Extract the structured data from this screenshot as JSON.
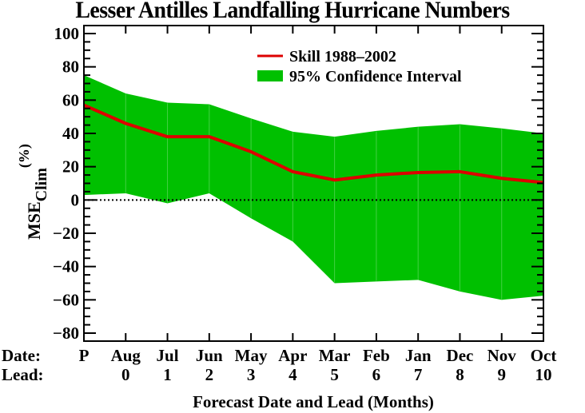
{
  "chart_data": {
    "type": "line",
    "title": "Lesser Antilles Landfalling Hurricane Numbers",
    "xlabel": "Forecast Date and Lead (Months)",
    "ylabel": "MSE",
    "ylabel_subscript": "Clim",
    "ylabel_superscript": "(%)",
    "row_labels": {
      "date": "Date:",
      "lead": "Lead:"
    },
    "categories": [
      "P",
      "Aug",
      "Jul",
      "Jun",
      "May",
      "Apr",
      "Mar",
      "Feb",
      "Jan",
      "Dec",
      "Nov",
      "Oct"
    ],
    "leads": [
      "",
      "0",
      "1",
      "2",
      "3",
      "4",
      "5",
      "6",
      "7",
      "8",
      "9",
      "10"
    ],
    "ylim": [
      -85,
      105
    ],
    "yticks": [
      100,
      80,
      60,
      40,
      20,
      0,
      -20,
      -40,
      -60,
      -80
    ],
    "ytick_labels": [
      "100",
      "80",
      "60",
      "40",
      "20",
      "0",
      "−20",
      "−40",
      "−60",
      "−80"
    ],
    "reference_line": {
      "y": 0,
      "style": "dotted"
    },
    "grid": false,
    "legend_position": "top-center",
    "series": [
      {
        "name": "Skill 1988–2002",
        "type": "line",
        "color": "#dd0000",
        "values": [
          57,
          46,
          38,
          38,
          29,
          17,
          12,
          15,
          16.5,
          17,
          13,
          10.5
        ]
      },
      {
        "name": "95% Confidence Interval",
        "type": "band",
        "color": "#00c000",
        "upper": [
          75,
          64,
          58.5,
          57.5,
          49,
          41,
          38,
          41.5,
          44,
          45.5,
          43,
          40
        ],
        "lower": [
          3,
          4,
          -2,
          4,
          -11,
          -25,
          -50,
          -49,
          -48,
          -55,
          -60,
          -57.5
        ]
      }
    ]
  }
}
